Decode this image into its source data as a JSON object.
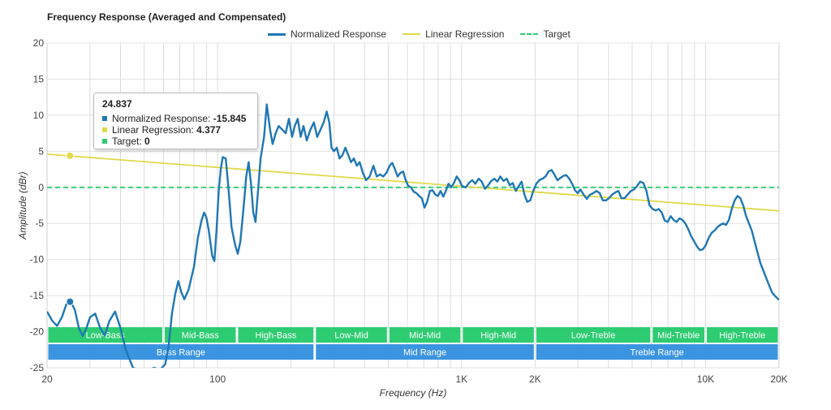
{
  "chart_data": {
    "type": "line",
    "title": "Frequency Response (Averaged and Compensated)",
    "xlabel": "Frequency (Hz)",
    "ylabel": "Amplitude (dBr)",
    "x_scale": "log",
    "xlim": [
      20,
      20000
    ],
    "ylim": [
      -25,
      20
    ],
    "grid": true,
    "legend_position": "top-center",
    "y_ticks": [
      20,
      15,
      10,
      5,
      0,
      -5,
      -10,
      -15,
      -20,
      -25
    ],
    "x_ticks": [
      {
        "value": 20,
        "label": "20"
      },
      {
        "value": 100,
        "label": "100"
      },
      {
        "value": 1000,
        "label": "1K"
      },
      {
        "value": 2000,
        "label": "2K"
      },
      {
        "value": 10000,
        "label": "10K"
      },
      {
        "value": 20000,
        "label": "20K"
      }
    ],
    "series": [
      {
        "name": "Normalized Response",
        "color": "#1f77b4",
        "style": "solid",
        "points": [
          [
            20,
            -17.2
          ],
          [
            21,
            -18.5
          ],
          [
            22,
            -19.2
          ],
          [
            23,
            -18.0
          ],
          [
            24,
            -16.2
          ],
          [
            25,
            -15.8
          ],
          [
            26,
            -17.0
          ],
          [
            27,
            -19.5
          ],
          [
            28,
            -20.6
          ],
          [
            29,
            -19.5
          ],
          [
            30,
            -18.0
          ],
          [
            31.5,
            -17.5
          ],
          [
            33,
            -19.5
          ],
          [
            34.5,
            -20.5
          ],
          [
            36,
            -18.5
          ],
          [
            38,
            -17.2
          ],
          [
            40,
            -19.5
          ],
          [
            42,
            -22.5
          ],
          [
            45,
            -25.0
          ],
          [
            50,
            -25.5
          ],
          [
            55,
            -25.0
          ],
          [
            58,
            -25.3
          ],
          [
            61,
            -24.5
          ],
          [
            63,
            -22.0
          ],
          [
            65,
            -17.5
          ],
          [
            67,
            -14.8
          ],
          [
            69,
            -13.0
          ],
          [
            71,
            -14.5
          ],
          [
            73,
            -15.5
          ],
          [
            76,
            -14.2
          ],
          [
            80,
            -11.0
          ],
          [
            83,
            -7.0
          ],
          [
            86,
            -4.5
          ],
          [
            88,
            -3.5
          ],
          [
            90,
            -4.2
          ],
          [
            92,
            -6.0
          ],
          [
            95,
            -9.5
          ],
          [
            97,
            -10.2
          ],
          [
            99,
            -6.0
          ],
          [
            101,
            -0.5
          ],
          [
            103,
            2.5
          ],
          [
            105,
            4.2
          ],
          [
            108,
            4.0
          ],
          [
            111,
            -0.5
          ],
          [
            114,
            -5.5
          ],
          [
            118,
            -8.0
          ],
          [
            121,
            -9.2
          ],
          [
            124,
            -7.5
          ],
          [
            128,
            -2.5
          ],
          [
            131,
            1.5
          ],
          [
            134,
            3.5
          ],
          [
            137,
            0.5
          ],
          [
            140,
            -3.5
          ],
          [
            143,
            -4.8
          ],
          [
            146,
            -1.0
          ],
          [
            150,
            4.0
          ],
          [
            155,
            7.0
          ],
          [
            159,
            11.5
          ],
          [
            164,
            8.0
          ],
          [
            168,
            6.0
          ],
          [
            173,
            7.5
          ],
          [
            178,
            8.5
          ],
          [
            184,
            8.0
          ],
          [
            190,
            7.5
          ],
          [
            196,
            9.5
          ],
          [
            202,
            7.0
          ],
          [
            207,
            8.5
          ],
          [
            213,
            9.5
          ],
          [
            219,
            7.0
          ],
          [
            225,
            8.5
          ],
          [
            232,
            6.5
          ],
          [
            240,
            8.0
          ],
          [
            248,
            9.0
          ],
          [
            256,
            7.0
          ],
          [
            264,
            8.0
          ],
          [
            272,
            9.0
          ],
          [
            280,
            10.5
          ],
          [
            287,
            9.0
          ],
          [
            293,
            5.5
          ],
          [
            300,
            5.0
          ],
          [
            308,
            5.5
          ],
          [
            316,
            4.0
          ],
          [
            325,
            4.5
          ],
          [
            334,
            5.5
          ],
          [
            343,
            4.5
          ],
          [
            352,
            3.5
          ],
          [
            362,
            4.0
          ],
          [
            372,
            3.0
          ],
          [
            382,
            3.5
          ],
          [
            394,
            2.0
          ],
          [
            406,
            1.0
          ],
          [
            420,
            1.5
          ],
          [
            435,
            3.0
          ],
          [
            449,
            1.5
          ],
          [
            463,
            1.8
          ],
          [
            477,
            1.5
          ],
          [
            492,
            2.0
          ],
          [
            507,
            3.0
          ],
          [
            520,
            3.4
          ],
          [
            533,
            2.5
          ],
          [
            547,
            1.5
          ],
          [
            561,
            2.0
          ],
          [
            576,
            2.2
          ],
          [
            590,
            1.0
          ],
          [
            604,
            0.2
          ],
          [
            620,
            0.0
          ],
          [
            636,
            -0.6
          ],
          [
            653,
            -0.8
          ],
          [
            670,
            -1.2
          ],
          [
            687,
            -1.5
          ],
          [
            704,
            -2.8
          ],
          [
            722,
            -2.0
          ],
          [
            741,
            -0.5
          ],
          [
            760,
            -0.4
          ],
          [
            780,
            -1.0
          ],
          [
            800,
            -1.2
          ],
          [
            820,
            -0.5
          ],
          [
            841,
            -1.3
          ],
          [
            862,
            -0.5
          ],
          [
            884,
            0.5
          ],
          [
            906,
            0.0
          ],
          [
            930,
            0.6
          ],
          [
            955,
            1.5
          ],
          [
            979,
            1.0
          ],
          [
            1003,
            0.2
          ],
          [
            1040,
            0.0
          ],
          [
            1072,
            0.6
          ],
          [
            1105,
            1.0
          ],
          [
            1138,
            0.5
          ],
          [
            1174,
            1.2
          ],
          [
            1210,
            0.8
          ],
          [
            1247,
            -0.2
          ],
          [
            1285,
            0.3
          ],
          [
            1323,
            0.9
          ],
          [
            1362,
            1.2
          ],
          [
            1400,
            0.8
          ],
          [
            1442,
            1.5
          ],
          [
            1485,
            0.9
          ],
          [
            1530,
            1.2
          ],
          [
            1575,
            0.3
          ],
          [
            1620,
            0.6
          ],
          [
            1668,
            -0.5
          ],
          [
            1715,
            0.2
          ],
          [
            1762,
            0.8
          ],
          [
            1808,
            -1.0
          ],
          [
            1858,
            -2.0
          ],
          [
            1912,
            -1.8
          ],
          [
            1966,
            -0.5
          ],
          [
            2024,
            0.5
          ],
          [
            2083,
            1.0
          ],
          [
            2145,
            1.2
          ],
          [
            2207,
            1.5
          ],
          [
            2270,
            2.2
          ],
          [
            2337,
            2.4
          ],
          [
            2400,
            1.8
          ],
          [
            2470,
            1.0
          ],
          [
            2540,
            1.3
          ],
          [
            2614,
            1.6
          ],
          [
            2687,
            1.7
          ],
          [
            2762,
            1.2
          ],
          [
            2838,
            0.5
          ],
          [
            2914,
            -0.4
          ],
          [
            2992,
            -0.8
          ],
          [
            3070,
            -0.3
          ],
          [
            3160,
            -1.0
          ],
          [
            3260,
            -1.6
          ],
          [
            3360,
            -1.0
          ],
          [
            3465,
            -0.8
          ],
          [
            3570,
            -0.5
          ],
          [
            3680,
            -0.8
          ],
          [
            3790,
            -1.8
          ],
          [
            3905,
            -1.8
          ],
          [
            4020,
            -1.5
          ],
          [
            4140,
            -1.0
          ],
          [
            4265,
            -0.7
          ],
          [
            4390,
            -0.5
          ],
          [
            4520,
            -1.5
          ],
          [
            4655,
            -1.5
          ],
          [
            4795,
            -1.0
          ],
          [
            4940,
            -0.5
          ],
          [
            5090,
            -0.3
          ],
          [
            5240,
            0.2
          ],
          [
            5396,
            0.8
          ],
          [
            5557,
            0.6
          ],
          [
            5722,
            -0.5
          ],
          [
            5892,
            -2.5
          ],
          [
            6065,
            -3.0
          ],
          [
            6244,
            -3.2
          ],
          [
            6425,
            -3.0
          ],
          [
            6612,
            -3.5
          ],
          [
            6800,
            -4.6
          ],
          [
            6994,
            -4.8
          ],
          [
            7190,
            -4.0
          ],
          [
            7391,
            -4.5
          ],
          [
            7600,
            -4.8
          ],
          [
            7814,
            -4.3
          ],
          [
            8034,
            -4.5
          ],
          [
            8260,
            -5.0
          ],
          [
            8491,
            -5.8
          ],
          [
            8730,
            -6.8
          ],
          [
            8974,
            -7.5
          ],
          [
            9225,
            -8.2
          ],
          [
            9482,
            -8.7
          ],
          [
            9745,
            -8.6
          ],
          [
            10016,
            -8.0
          ],
          [
            10294,
            -7.0
          ],
          [
            10580,
            -6.3
          ],
          [
            10874,
            -6.0
          ],
          [
            11175,
            -5.5
          ],
          [
            11484,
            -5.2
          ],
          [
            11800,
            -5.0
          ],
          [
            12125,
            -5.2
          ],
          [
            12458,
            -4.5
          ],
          [
            12800,
            -3.0
          ],
          [
            13151,
            -1.8
          ],
          [
            13512,
            -1.2
          ],
          [
            13880,
            -1.5
          ],
          [
            14260,
            -2.5
          ],
          [
            14650,
            -4.0
          ],
          [
            15050,
            -5.0
          ],
          [
            15460,
            -6.0
          ],
          [
            15880,
            -7.5
          ],
          [
            16320,
            -9.0
          ],
          [
            16770,
            -10.5
          ],
          [
            17230,
            -11.5
          ],
          [
            17700,
            -12.5
          ],
          [
            18180,
            -13.5
          ],
          [
            18680,
            -14.5
          ],
          [
            19190,
            -15.0
          ],
          [
            19720,
            -15.4
          ],
          [
            20000,
            -15.6
          ]
        ]
      },
      {
        "name": "Linear Regression",
        "color": "#e0d94a",
        "style": "solid",
        "points": [
          [
            20,
            4.6
          ],
          [
            20000,
            -3.25
          ]
        ]
      },
      {
        "name": "Target",
        "color": "#2ecc71",
        "style": "dashed",
        "points": [
          [
            20,
            0
          ],
          [
            20000,
            0
          ]
        ]
      }
    ],
    "bands_top": [
      {
        "label": "Low-Bass",
        "from": 20,
        "to": 60
      },
      {
        "label": "Mid-Bass",
        "from": 60,
        "to": 120
      },
      {
        "label": "High-Bass",
        "from": 120,
        "to": 250
      },
      {
        "label": "Low-Mid",
        "from": 250,
        "to": 500
      },
      {
        "label": "Mid-Mid",
        "from": 500,
        "to": 1000
      },
      {
        "label": "High-Mid",
        "from": 1000,
        "to": 2000
      },
      {
        "label": "Low-Treble",
        "from": 2000,
        "to": 6000
      },
      {
        "label": "Mid-Treble",
        "from": 6000,
        "to": 10000
      },
      {
        "label": "High-Treble",
        "from": 10000,
        "to": 20000
      }
    ],
    "bands_bottom": [
      {
        "label": "Bass Range",
        "from": 20,
        "to": 250
      },
      {
        "label": "Mid Range",
        "from": 250,
        "to": 2000
      },
      {
        "label": "Treble Range",
        "from": 2000,
        "to": 20000
      }
    ],
    "band_colors": {
      "top": "#2ecc71",
      "bottom": "#3b94e0"
    },
    "tooltip": {
      "x": "24.837",
      "rows": [
        {
          "label": "Normalized Response:",
          "value": "-15.845",
          "color": "#1f77b4"
        },
        {
          "label": "Linear Regression:",
          "value": "4.377",
          "color": "#e0d94a"
        },
        {
          "label": "Target:",
          "value": "0",
          "color": "#2ecc71"
        }
      ],
      "marker_points": [
        {
          "series": "Normalized Response",
          "x": 24.837,
          "y": -15.845
        },
        {
          "series": "Linear Regression",
          "x": 24.837,
          "y": 4.377
        }
      ]
    }
  }
}
